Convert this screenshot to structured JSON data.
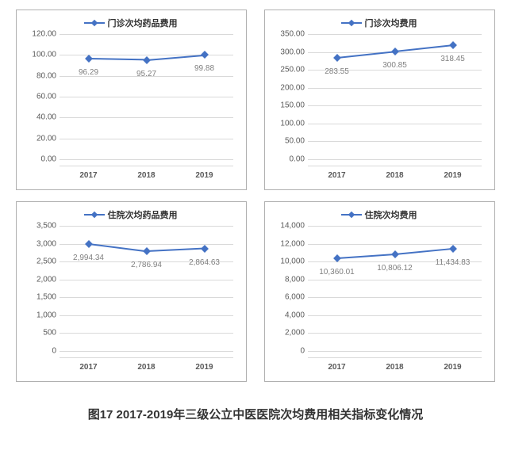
{
  "caption": "图17 2017-2019年三级公立中医医院次均费用相关指标变化情况",
  "series_color": "#4472c4",
  "grid_color": "#d9d9d9",
  "x_categories": [
    "2017",
    "2018",
    "2019"
  ],
  "charts": [
    {
      "legend": "门诊次均药品费用",
      "ymin": 0,
      "ymax": 120,
      "ystep": 20,
      "decimals": 2,
      "values": [
        96.29,
        95.27,
        99.88
      ],
      "labels": [
        "96.29",
        "95.27",
        "99.88"
      ]
    },
    {
      "legend": "门诊次均费用",
      "ymin": 0,
      "ymax": 350,
      "ystep": 50,
      "decimals": 2,
      "values": [
        283.55,
        300.85,
        318.45
      ],
      "labels": [
        "283.55",
        "300.85",
        "318.45"
      ]
    },
    {
      "legend": "住院次均药品费用",
      "ymin": 0,
      "ymax": 3500,
      "ystep": 500,
      "decimals": 0,
      "thousands": true,
      "values": [
        2994.34,
        2786.94,
        2864.63
      ],
      "labels": [
        "2,994.34",
        "2,786.94",
        "2,864.63"
      ]
    },
    {
      "legend": "住院次均费用",
      "ymin": 0,
      "ymax": 14000,
      "ystep": 2000,
      "decimals": 0,
      "thousands": true,
      "values": [
        10360.01,
        10806.12,
        11434.83
      ],
      "labels": [
        "10,360.01",
        "10,806.12",
        "11,434.83"
      ]
    }
  ]
}
